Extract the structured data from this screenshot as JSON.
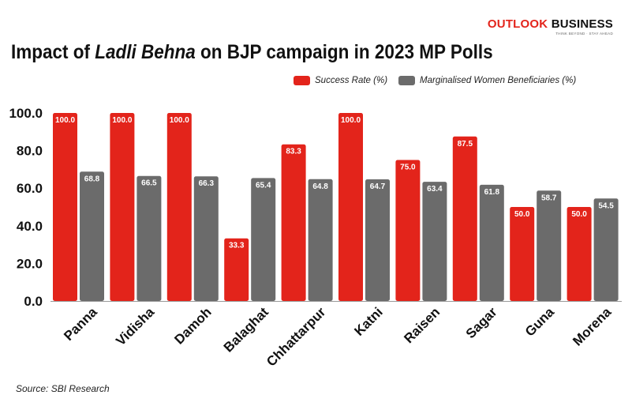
{
  "brand": {
    "name_part1": "OUTLOOK",
    "name_part2": "BUSINESS",
    "tagline": "THINK BEYOND · STAY AHEAD"
  },
  "title_parts": {
    "pre": "Impact of ",
    "em": "Ladli Behna",
    "post": " on BJP campaign in 2023 MP Polls"
  },
  "source": "Source: SBI Research",
  "colors": {
    "success": "#e3241b",
    "beneficiaries": "#6b6b6b",
    "axis": "#999999"
  },
  "chart_data": {
    "type": "bar",
    "title": "Impact of Ladli Behna on BJP campaign in 2023 MP Polls",
    "categories": [
      "Panna",
      "Vidisha",
      "Damoh",
      "Balaghat",
      "Chhattarpur",
      "Katni",
      "Raisen",
      "Sagar",
      "Guna",
      "Morena"
    ],
    "series": [
      {
        "name": "Success Rate (%)",
        "values": [
          100.0,
          100.0,
          100.0,
          33.3,
          83.3,
          100.0,
          75.0,
          87.5,
          50.0,
          50.0
        ]
      },
      {
        "name": "Marginalised Women Beneficiaries (%)",
        "values": [
          68.8,
          66.5,
          66.3,
          65.4,
          64.8,
          64.7,
          63.4,
          61.8,
          58.7,
          54.5
        ]
      }
    ],
    "yticks": [
      "0.0",
      "20.0",
      "40.0",
      "60.0",
      "80.0",
      "100.0"
    ],
    "ylim": [
      0,
      100
    ],
    "xlabel": "",
    "ylabel": "",
    "grid": false,
    "legend_position": "top-right"
  }
}
